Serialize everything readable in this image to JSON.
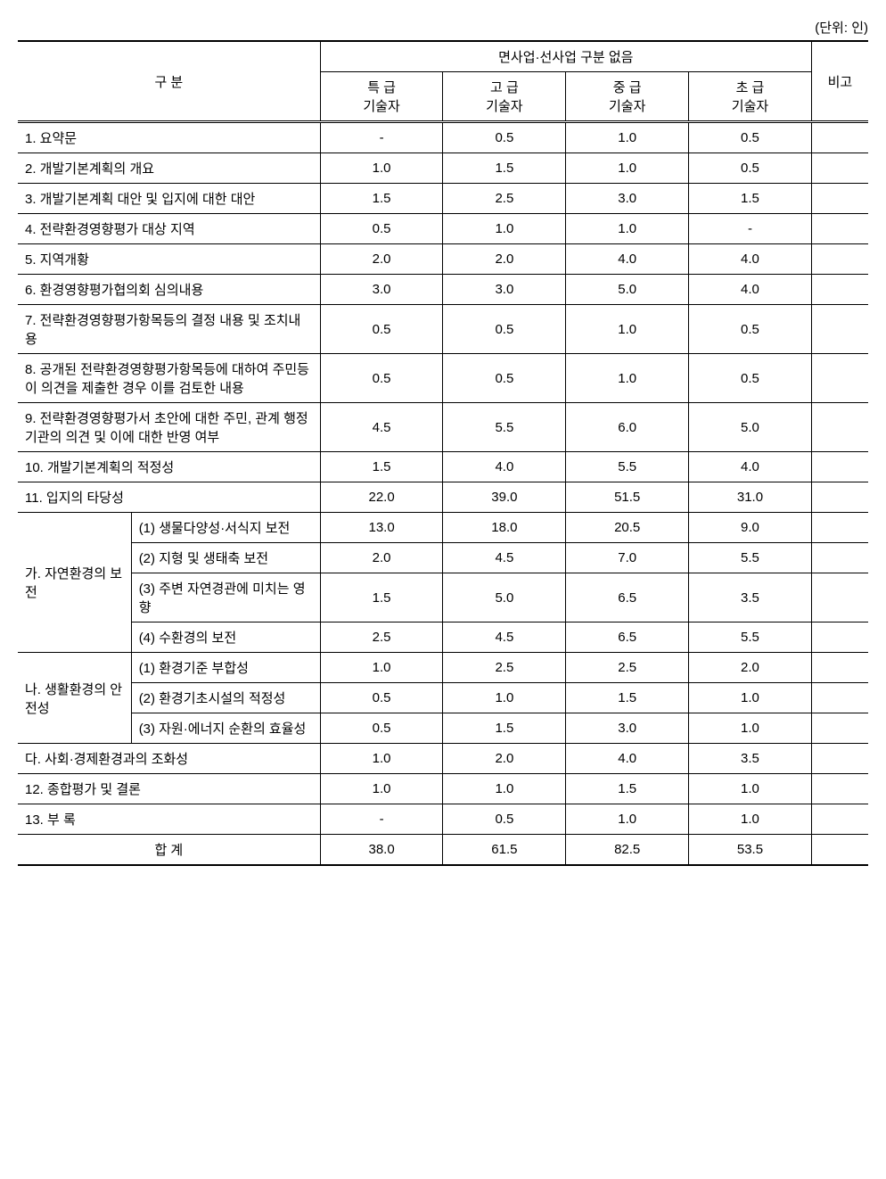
{
  "meta": {
    "unit_label": "(단위: 인)"
  },
  "header": {
    "category_label": "구      분",
    "group_label": "면사업·선사업 구분 없음",
    "col_special": "특 급\n기술자",
    "col_high": "고 급\n기술자",
    "col_mid": "중 급\n기술자",
    "col_low": "초 급\n기술자",
    "remark_label": "비고"
  },
  "rows": [
    {
      "label": "1. 요약문",
      "special": "-",
      "high": "0.5",
      "mid": "1.0",
      "low": "0.5",
      "remark": ""
    },
    {
      "label": "2. 개발기본계획의 개요",
      "special": "1.0",
      "high": "1.5",
      "mid": "1.0",
      "low": "0.5",
      "remark": ""
    },
    {
      "label": "3. 개발기본계획 대안 및 입지에 대한 대안",
      "special": "1.5",
      "high": "2.5",
      "mid": "3.0",
      "low": "1.5",
      "remark": ""
    },
    {
      "label": "4. 전략환경영향평가 대상 지역",
      "special": "0.5",
      "high": "1.0",
      "mid": "1.0",
      "low": "-",
      "remark": ""
    },
    {
      "label": "5. 지역개황",
      "special": "2.0",
      "high": "2.0",
      "mid": "4.0",
      "low": "4.0",
      "remark": ""
    },
    {
      "label": "6. 환경영향평가협의회 심의내용",
      "special": "3.0",
      "high": "3.0",
      "mid": "5.0",
      "low": "4.0",
      "remark": ""
    },
    {
      "label": "7. 전략환경영향평가항목등의 결정 내용 및 조치내용",
      "special": "0.5",
      "high": "0.5",
      "mid": "1.0",
      "low": "0.5",
      "remark": ""
    },
    {
      "label": "8. 공개된 전략환경영향평가항목등에 대하여 주민등이 의견을 제출한 경우 이를 검토한 내용",
      "special": "0.5",
      "high": "0.5",
      "mid": "1.0",
      "low": "0.5",
      "remark": ""
    },
    {
      "label": "9. 전략환경영향평가서 초안에 대한 주민, 관계 행정기관의 의견 및 이에 대한 반영 여부",
      "special": "4.5",
      "high": "5.5",
      "mid": "6.0",
      "low": "5.0",
      "remark": ""
    },
    {
      "label": "10. 개발기본계획의 적정성",
      "special": "1.5",
      "high": "4.0",
      "mid": "5.5",
      "low": "4.0",
      "remark": ""
    },
    {
      "label": "11. 입지의 타당성",
      "special": "22.0",
      "high": "39.0",
      "mid": "51.5",
      "low": "31.0",
      "remark": ""
    }
  ],
  "sub_a": {
    "group_label": "가. 자연환경의 보전",
    "items": [
      {
        "label": "(1) 생물다양성·서식지 보전",
        "special": "13.0",
        "high": "18.0",
        "mid": "20.5",
        "low": "9.0",
        "remark": ""
      },
      {
        "label": "(2) 지형 및 생태축 보전",
        "special": "2.0",
        "high": "4.5",
        "mid": "7.0",
        "low": "5.5",
        "remark": ""
      },
      {
        "label": "(3) 주변 자연경관에 미치는 영향",
        "special": "1.5",
        "high": "5.0",
        "mid": "6.5",
        "low": "3.5",
        "remark": ""
      },
      {
        "label": "(4) 수환경의 보전",
        "special": "2.5",
        "high": "4.5",
        "mid": "6.5",
        "low": "5.5",
        "remark": ""
      }
    ]
  },
  "sub_b": {
    "group_label": "나. 생활환경의 안전성",
    "items": [
      {
        "label": "(1) 환경기준 부합성",
        "special": "1.0",
        "high": "2.5",
        "mid": "2.5",
        "low": "2.0",
        "remark": ""
      },
      {
        "label": "(2) 환경기초시설의 적정성",
        "special": "0.5",
        "high": "1.0",
        "mid": "1.5",
        "low": "1.0",
        "remark": ""
      },
      {
        "label": "(3) 자원·에너지 순환의 효율성",
        "special": "0.5",
        "high": "1.5",
        "mid": "3.0",
        "low": "1.0",
        "remark": ""
      }
    ]
  },
  "sub_c": {
    "label": "다. 사회·경제환경과의 조화성",
    "special": "1.0",
    "high": "2.0",
    "mid": "4.0",
    "low": "3.5",
    "remark": ""
  },
  "rows_after": [
    {
      "label": "12. 종합평가 및 결론",
      "special": "1.0",
      "high": "1.0",
      "mid": "1.5",
      "low": "1.0",
      "remark": ""
    },
    {
      "label": "13. 부  록",
      "special": "-",
      "high": "0.5",
      "mid": "1.0",
      "low": "1.0",
      "remark": ""
    }
  ],
  "total": {
    "label": "합      계",
    "special": "38.0",
    "high": "61.5",
    "mid": "82.5",
    "low": "53.5",
    "remark": ""
  },
  "styling": {
    "font_family": "Malgun Gothic",
    "font_size_pt": 11,
    "border_color": "#000000",
    "background_color": "#ffffff",
    "text_color": "#000000",
    "header_border_top_width": 2,
    "body_top_border": "double",
    "footer_border_bottom_width": 2
  }
}
